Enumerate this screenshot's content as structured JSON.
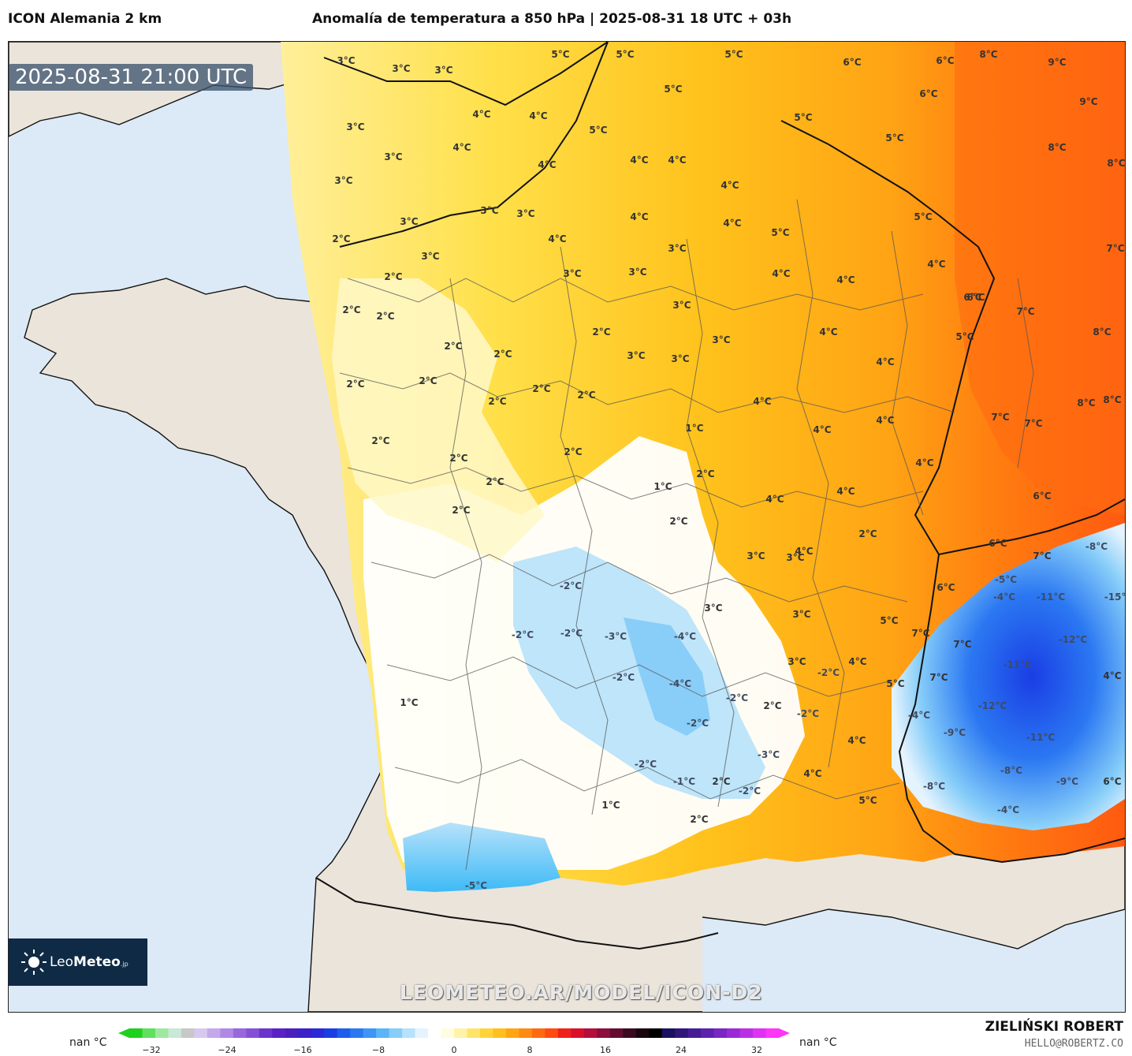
{
  "header": {
    "model": "ICON Alemania 2 km",
    "title": "Anomalía de temperatura a 850 hPa | 2025-08-31 18 UTC + 03h"
  },
  "map": {
    "timestamp": "2025-08-31 21:00 UTC",
    "watermark": "LEOMETEO.AR/MODEL/ICON-D2",
    "colors": {
      "sea": "#dce9f6",
      "land": "#ebe4da"
    },
    "labels": [
      {
        "text": "3°C"
      },
      {
        "text": "3°C"
      },
      {
        "text": "3°C"
      },
      {
        "text": "3°C"
      },
      {
        "text": "3°C"
      },
      {
        "text": "3°C"
      },
      {
        "text": "4°C"
      },
      {
        "text": "4°C"
      },
      {
        "text": "4°C"
      },
      {
        "text": "4°C"
      },
      {
        "text": "4°C"
      },
      {
        "text": "4°C"
      },
      {
        "text": "5°C"
      },
      {
        "text": "5°C"
      },
      {
        "text": "5°C"
      },
      {
        "text": "5°C"
      },
      {
        "text": "5°C"
      },
      {
        "text": "6°C"
      },
      {
        "text": "6°C"
      },
      {
        "text": "6°C"
      },
      {
        "text": "8°C"
      },
      {
        "text": "9°C"
      },
      {
        "text": "9°C"
      },
      {
        "text": "8°C"
      },
      {
        "text": "8°C"
      },
      {
        "text": "7°C"
      },
      {
        "text": "8°C"
      },
      {
        "text": "6°C"
      },
      {
        "text": "7°C"
      },
      {
        "text": "8°C"
      },
      {
        "text": "3°C"
      },
      {
        "text": "3°C"
      },
      {
        "text": "3°C"
      },
      {
        "text": "3°C"
      },
      {
        "text": "4°C"
      },
      {
        "text": "4°C"
      },
      {
        "text": "4°C"
      },
      {
        "text": "5°C"
      },
      {
        "text": "5°C"
      },
      {
        "text": "5°C"
      },
      {
        "text": "2°C"
      },
      {
        "text": "2°C"
      },
      {
        "text": "3°C"
      },
      {
        "text": "3°C"
      },
      {
        "text": "3°C"
      },
      {
        "text": "3°C"
      },
      {
        "text": "4°C"
      },
      {
        "text": "4°C"
      },
      {
        "text": "4°C"
      },
      {
        "text": "4°C"
      },
      {
        "text": "2°C"
      },
      {
        "text": "2°C"
      },
      {
        "text": "2°C"
      },
      {
        "text": "2°C"
      },
      {
        "text": "2°C"
      },
      {
        "text": "3°C"
      },
      {
        "text": "3°C"
      },
      {
        "text": "3°C"
      },
      {
        "text": "4°C"
      },
      {
        "text": "4°C"
      },
      {
        "text": "5°C"
      },
      {
        "text": "5°C"
      },
      {
        "text": "2°C"
      },
      {
        "text": "2°C"
      },
      {
        "text": "2°C"
      },
      {
        "text": "2°C"
      },
      {
        "text": "2°C"
      },
      {
        "text": "1°C"
      },
      {
        "text": "4°C"
      },
      {
        "text": "4°C"
      },
      {
        "text": "4°C"
      },
      {
        "text": "7°C"
      },
      {
        "text": "7°C"
      },
      {
        "text": "8°C"
      },
      {
        "text": "2°C"
      },
      {
        "text": "2°C"
      },
      {
        "text": "2°C"
      },
      {
        "text": "1°C"
      },
      {
        "text": "2°C"
      },
      {
        "text": "4°C"
      },
      {
        "text": "4°C"
      },
      {
        "text": "4°C"
      },
      {
        "text": "6°C"
      },
      {
        "text": "6°C"
      },
      {
        "text": "2°C"
      },
      {
        "text": "2°C"
      },
      {
        "text": "3°C"
      },
      {
        "text": "3°C"
      },
      {
        "text": "2°C"
      },
      {
        "text": "4°C"
      },
      {
        "text": "6°C"
      },
      {
        "text": "7°C"
      },
      {
        "text": "-8°C"
      },
      {
        "text": "-2°C"
      },
      {
        "text": "2°C"
      },
      {
        "text": "3°C"
      },
      {
        "text": "6°C"
      },
      {
        "text": "-5°C"
      },
      {
        "text": "-4°C"
      },
      {
        "text": "-11°C"
      },
      {
        "text": "-15°C"
      },
      {
        "text": "-2°C"
      },
      {
        "text": "-2°C"
      },
      {
        "text": "-3°C"
      },
      {
        "text": "-4°C"
      },
      {
        "text": "3°C"
      },
      {
        "text": "5°C"
      },
      {
        "text": "7°C"
      },
      {
        "text": "7°C"
      },
      {
        "text": "-12°C"
      },
      {
        "text": "-2°C"
      },
      {
        "text": "-4°C"
      },
      {
        "text": "3°C"
      },
      {
        "text": "-2°C"
      },
      {
        "text": "4°C"
      },
      {
        "text": "7°C"
      },
      {
        "text": "-11°C"
      },
      {
        "text": "4°C"
      },
      {
        "text": "1°C"
      },
      {
        "text": "-2°C"
      },
      {
        "text": "2°C"
      },
      {
        "text": "-2°C"
      },
      {
        "text": "-2°C"
      },
      {
        "text": "5°C"
      },
      {
        "text": "-4°C"
      },
      {
        "text": "-12°C"
      },
      {
        "text": "-9°C"
      },
      {
        "text": "-3°C"
      },
      {
        "text": "4°C"
      },
      {
        "text": "-11°C"
      },
      {
        "text": "-2°C"
      },
      {
        "text": "-1°C"
      },
      {
        "text": "2°C"
      },
      {
        "text": "-2°C"
      },
      {
        "text": "4°C"
      },
      {
        "text": "-8°C"
      },
      {
        "text": "-8°C"
      },
      {
        "text": "-9°C"
      },
      {
        "text": "6°C"
      },
      {
        "text": "1°C"
      },
      {
        "text": "2°C"
      },
      {
        "text": "5°C"
      },
      {
        "text": "-4°C"
      },
      {
        "text": "-5°C"
      }
    ]
  },
  "logo": {
    "brand_light": "Leo",
    "brand_bold": "Meteo",
    "suffix": ".jp"
  },
  "legend": {
    "nan_left": "nan °C",
    "nan_right": "nan °C",
    "ticks": [
      "−32",
      "−24",
      "−16",
      "−8",
      "0",
      "8",
      "16",
      "24",
      "32"
    ],
    "colors": [
      "#1fd11f",
      "#5fe05f",
      "#9fe89f",
      "#c9e8d6",
      "#c8c8c8",
      "#d8c8f0",
      "#c4a8ec",
      "#b089e6",
      "#9a66de",
      "#8550d6",
      "#6d34cc",
      "#5a22c4",
      "#4b1ec0",
      "#3a22c8",
      "#2a2ad6",
      "#1a3ee4",
      "#1e5cec",
      "#2b78f2",
      "#3d96f6",
      "#5ab4f8",
      "#86cdf9",
      "#b7e2fb",
      "#e4f3fd",
      "#ffffff",
      "#fffde0",
      "#fff3a8",
      "#ffe46a",
      "#ffd43a",
      "#ffbf1c",
      "#ffa514",
      "#ff8a10",
      "#ff6a10",
      "#ff4a10",
      "#f0201c",
      "#d8102a",
      "#b40e3c",
      "#8c0e3a",
      "#640c30",
      "#3c0a20",
      "#1a060e",
      "#000000",
      "#1a1060",
      "#30167a",
      "#461c94",
      "#5c22ae",
      "#7a26c4",
      "#9a2ad6",
      "#bc2ee6",
      "#e032f2",
      "#ff36f8"
    ]
  },
  "credits": {
    "author": "ZIELIŃSKI ROBERT",
    "email": "HELLO@ROBERTZ.CO"
  }
}
